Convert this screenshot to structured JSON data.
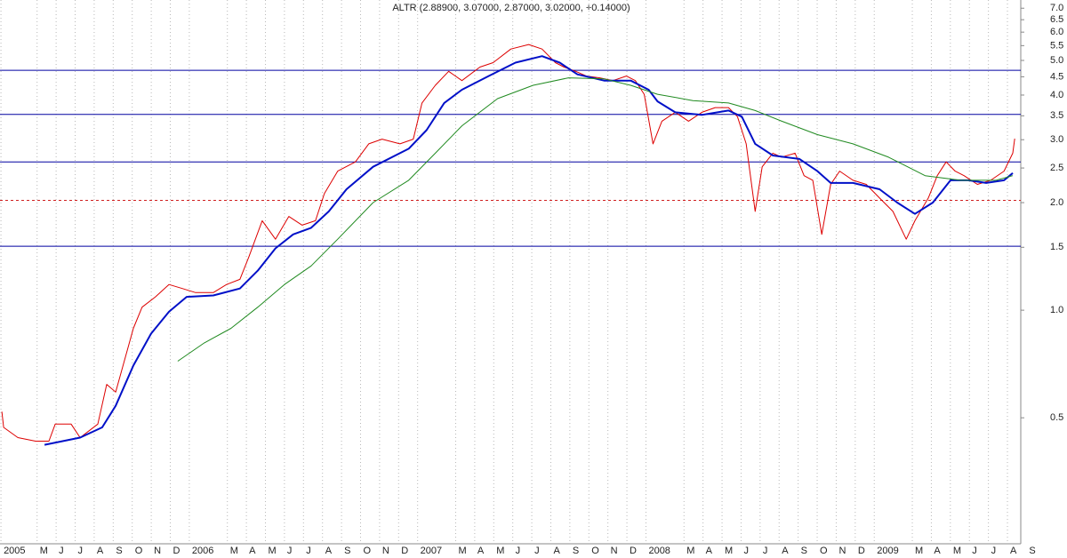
{
  "chart_data": {
    "type": "line",
    "title": "ALTR (2.88900, 3.07000, 2.87000, 3.02000, +0.14000)",
    "log_scale": true,
    "grid": true,
    "xlim": [
      2.05,
      55.7
    ],
    "ylim": [
      0.222,
      7.38
    ],
    "yticks": [
      {
        "value": 7,
        "label": "7.0"
      },
      6.5,
      {
        "value": 6,
        "label": "6.0"
      },
      5.5,
      {
        "value": 5,
        "label": "5.0"
      },
      4.5,
      {
        "value": 4,
        "label": "4.0"
      },
      3.5,
      {
        "value": 3,
        "label": "3.0"
      },
      2.5,
      {
        "value": 2,
        "label": "2.0"
      },
      1.5,
      {
        "value": 1,
        "label": "1.0"
      },
      0.5
    ],
    "xticks": [
      {
        "value": 2.1,
        "label": "2005"
      },
      {
        "value": 4,
        "label": "M"
      },
      {
        "value": 5,
        "label": "J"
      },
      {
        "value": 6,
        "label": "J"
      },
      {
        "value": 7,
        "label": "A"
      },
      {
        "value": 8,
        "label": "S"
      },
      {
        "value": 9,
        "label": "O"
      },
      {
        "value": 10,
        "label": "N"
      },
      {
        "value": 11,
        "label": "D"
      },
      {
        "value": 12,
        "label": "2006"
      },
      {
        "value": 14,
        "label": "M"
      },
      {
        "value": 15,
        "label": "A"
      },
      {
        "value": 16,
        "label": "M"
      },
      {
        "value": 17,
        "label": "J"
      },
      {
        "value": 18,
        "label": "J"
      },
      {
        "value": 19,
        "label": "A"
      },
      {
        "value": 20,
        "label": "S"
      },
      {
        "value": 21,
        "label": "O"
      },
      {
        "value": 22,
        "label": "N"
      },
      {
        "value": 23,
        "label": "D"
      },
      {
        "value": 24,
        "label": "2007"
      },
      {
        "value": 26,
        "label": "M"
      },
      {
        "value": 27,
        "label": "A"
      },
      {
        "value": 28,
        "label": "M"
      },
      {
        "value": 29,
        "label": "J"
      },
      {
        "value": 30,
        "label": "J"
      },
      {
        "value": 31,
        "label": "A"
      },
      {
        "value": 32,
        "label": "S"
      },
      {
        "value": 33,
        "label": "O"
      },
      {
        "value": 34,
        "label": "N"
      },
      {
        "value": 35,
        "label": "D"
      },
      {
        "value": 36,
        "label": "2008"
      },
      {
        "value": 38,
        "label": "M"
      },
      {
        "value": 39,
        "label": "A"
      },
      {
        "value": 40,
        "label": "M"
      },
      {
        "value": 41,
        "label": "J"
      },
      {
        "value": 42,
        "label": "J"
      },
      {
        "value": 43,
        "label": "A"
      },
      {
        "value": 44,
        "label": "S"
      },
      {
        "value": 45,
        "label": "O"
      },
      {
        "value": 46,
        "label": "N"
      },
      {
        "value": 47,
        "label": "D"
      },
      {
        "value": 48,
        "label": "2009"
      },
      {
        "value": 50,
        "label": "M"
      },
      {
        "value": 51,
        "label": "A"
      },
      {
        "value": 52,
        "label": "M"
      },
      {
        "value": 53,
        "label": "J"
      },
      {
        "value": 54,
        "label": "J"
      },
      {
        "value": 55,
        "label": "A"
      },
      {
        "value": 56,
        "label": "S"
      }
    ],
    "reference_lines": [
      {
        "value": 4.69,
        "color": "#0000a0",
        "style": "solid"
      },
      {
        "value": 3.53,
        "color": "#0000a0",
        "style": "solid"
      },
      {
        "value": 2.6,
        "color": "#0000a0",
        "style": "solid"
      },
      {
        "value": 2.03,
        "color": "#d02020",
        "style": "dashed"
      },
      {
        "value": 1.51,
        "color": "#0000a0",
        "style": "solid"
      }
    ],
    "series": [
      {
        "color": "#dd0000",
        "width": 1,
        "x": [
          2.15,
          2.24,
          2.99,
          3.92,
          4.62,
          4.95,
          5.79,
          6.26,
          7.19,
          7.66,
          8.13,
          9.06,
          9.52,
          10.22,
          10.93,
          11.63,
          12.33,
          13.26,
          13.96,
          14.66,
          15.13,
          15.83,
          16.53,
          17.23,
          17.93,
          18.63,
          19.1,
          19.8,
          20.73,
          21.43,
          22.13,
          23.07,
          23.77,
          24.23,
          24.93,
          25.63,
          26.33,
          27.27,
          27.97,
          28.9,
          29.84,
          30.54,
          31.24,
          31.7,
          32.31,
          32.87,
          33.57,
          34.27,
          34.97,
          35.44,
          35.91,
          36.37,
          36.84,
          37.54,
          38.24,
          38.94,
          39.64,
          40.34,
          40.81,
          41.27,
          41.74,
          42.11,
          42.67,
          43.14,
          43.84,
          44.31,
          44.77,
          45.24,
          45.71,
          46.18,
          46.88,
          47.58,
          48.28,
          48.98,
          49.68,
          50.14,
          50.84,
          51.31,
          51.78,
          52.25,
          52.72,
          53.42,
          54.12,
          54.82,
          55.28,
          55.38
        ],
        "values": [
          0.52,
          0.47,
          0.44,
          0.43,
          0.43,
          0.48,
          0.48,
          0.44,
          0.48,
          0.62,
          0.59,
          0.89,
          1.02,
          1.09,
          1.18,
          1.15,
          1.12,
          1.12,
          1.18,
          1.22,
          1.41,
          1.78,
          1.58,
          1.83,
          1.73,
          1.78,
          2.12,
          2.45,
          2.6,
          2.92,
          3.01,
          2.92,
          3.01,
          3.8,
          4.26,
          4.66,
          4.39,
          4.79,
          4.93,
          5.38,
          5.54,
          5.38,
          4.93,
          4.79,
          4.66,
          4.52,
          4.47,
          4.39,
          4.52,
          4.39,
          4.02,
          2.92,
          3.38,
          3.58,
          3.38,
          3.58,
          3.69,
          3.69,
          3.48,
          2.92,
          1.89,
          2.52,
          2.75,
          2.68,
          2.75,
          2.38,
          2.31,
          1.63,
          2.25,
          2.45,
          2.31,
          2.25,
          2.06,
          1.89,
          1.58,
          1.78,
          2.06,
          2.38,
          2.6,
          2.45,
          2.38,
          2.25,
          2.31,
          2.45,
          2.75,
          3.02
        ]
      },
      {
        "color": "#0010c8",
        "width": 2,
        "x": [
          4.39,
          6.26,
          7.42,
          8.13,
          9.06,
          9.99,
          10.93,
          11.86,
          13.26,
          14.66,
          15.6,
          16.53,
          17.46,
          18.4,
          19.33,
          20.26,
          21.66,
          23.53,
          24.47,
          25.4,
          26.33,
          27.73,
          29.14,
          30.54,
          31.47,
          32.4,
          33.8,
          35.2,
          36.14,
          36.61,
          37.54,
          38.94,
          40.34,
          41.04,
          41.74,
          42.67,
          44.07,
          45.01,
          45.71,
          46.88,
          48.28,
          49.21,
          50.14,
          51.08,
          52.01,
          52.95,
          53.88,
          54.82,
          55.28
        ],
        "values": [
          0.42,
          0.44,
          0.47,
          0.54,
          0.7,
          0.86,
          0.99,
          1.09,
          1.1,
          1.15,
          1.29,
          1.49,
          1.63,
          1.7,
          1.89,
          2.18,
          2.52,
          2.83,
          3.19,
          3.8,
          4.14,
          4.52,
          4.93,
          5.14,
          4.93,
          4.57,
          4.39,
          4.39,
          4.14,
          3.84,
          3.58,
          3.52,
          3.62,
          3.48,
          2.92,
          2.71,
          2.65,
          2.45,
          2.27,
          2.27,
          2.18,
          2.0,
          1.86,
          2.0,
          2.31,
          2.31,
          2.27,
          2.31,
          2.42
        ]
      },
      {
        "color": "#208a20",
        "width": 1,
        "x": [
          11.39,
          12.79,
          14.19,
          15.6,
          17.0,
          18.4,
          19.8,
          21.66,
          23.53,
          24.93,
          26.33,
          28.2,
          30.07,
          31.93,
          33.8,
          35.2,
          36.61,
          38.47,
          40.34,
          41.74,
          43.14,
          45.01,
          46.88,
          48.75,
          50.67,
          52.54,
          54.4,
          55.28
        ],
        "values": [
          0.72,
          0.81,
          0.89,
          1.02,
          1.18,
          1.33,
          1.58,
          2.0,
          2.31,
          2.75,
          3.28,
          3.91,
          4.26,
          4.47,
          4.44,
          4.26,
          4.02,
          3.86,
          3.8,
          3.62,
          3.38,
          3.1,
          2.92,
          2.68,
          2.38,
          2.31,
          2.31,
          2.38
        ]
      }
    ]
  }
}
